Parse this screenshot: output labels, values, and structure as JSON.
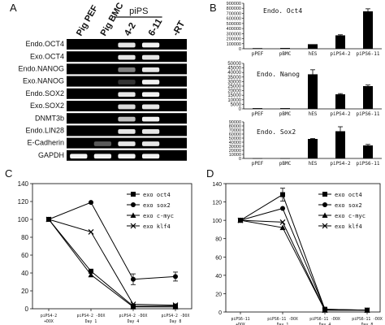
{
  "panels": {
    "a": "A",
    "b": "B",
    "c": "C",
    "d": "D"
  },
  "gel": {
    "lanes": [
      "Pig PEF",
      "Pig BMC",
      "4-2",
      "6-11",
      "-RT"
    ],
    "piPS_label": "piPS",
    "rows": [
      {
        "label": "Endo.OCT4",
        "bands": [
          0,
          0,
          0.9,
          0.95,
          0
        ]
      },
      {
        "label": "Exo.OCT4",
        "bands": [
          0,
          0,
          0.9,
          0.9,
          0
        ]
      },
      {
        "label": "Endo.NANOG",
        "bands": [
          0,
          0,
          0.5,
          0.9,
          0
        ]
      },
      {
        "label": "Exo.NANOG",
        "bands": [
          0,
          0,
          0.2,
          0.95,
          0
        ]
      },
      {
        "label": "Endo.SOX2",
        "bands": [
          0,
          0,
          0.9,
          0.95,
          0
        ]
      },
      {
        "label": "Exo.SOX2",
        "bands": [
          0,
          0,
          0.85,
          0.9,
          0
        ]
      },
      {
        "label": "DNMT3b",
        "bands": [
          0,
          0,
          0.75,
          0.95,
          0
        ]
      },
      {
        "label": "Endo.LIN28",
        "bands": [
          0,
          0,
          0.9,
          0.9,
          0
        ]
      },
      {
        "label": "E-Cadherin",
        "bands": [
          0,
          0.35,
          0.9,
          0.9,
          0
        ]
      },
      {
        "label": "GAPDH",
        "bands": [
          0.95,
          0.95,
          0.95,
          0.95,
          0
        ]
      }
    ]
  },
  "colors": {
    "gel_bg": "#000000",
    "band": "#ffffff",
    "bar": "#000000",
    "line": "#000000"
  },
  "chart_data": [
    {
      "type": "bar",
      "title": "Endo. Oct4",
      "categories": [
        "pPEF",
        "pBMC",
        "hES",
        "piPS4-2",
        "piPS6-11"
      ],
      "values": [
        12000,
        15000,
        90000,
        265000,
        740000
      ],
      "errors": [
        0,
        0,
        0,
        12000,
        50000
      ],
      "ylim": [
        0,
        900000
      ],
      "yticks": [
        "0",
        "100000",
        "200000",
        "300000",
        "400000",
        "500000",
        "600000",
        "700000",
        "800000",
        "900000"
      ]
    },
    {
      "type": "bar",
      "title": "Endo. Nanog",
      "categories": [
        "pPEF",
        "pBMC",
        "hES",
        "piPS4-2",
        "piPS6-11"
      ],
      "values": [
        800,
        800,
        38000,
        16000,
        25000
      ],
      "errors": [
        0,
        0,
        5000,
        800,
        1200
      ],
      "ylim": [
        0,
        50000
      ],
      "yticks": [
        "0",
        "5000",
        "10000",
        "15000",
        "20000",
        "25000",
        "30000",
        "35000",
        "40000",
        "45000",
        "50000"
      ]
    },
    {
      "type": "bar",
      "title": "Endo. Sox2",
      "categories": [
        "pPEF",
        "pBMC",
        "hES",
        "piPS4-2",
        "piPS6-11"
      ],
      "values": [
        400,
        400,
        48000,
        67000,
        32000
      ],
      "errors": [
        0,
        0,
        1000,
        11000,
        2500
      ],
      "ylim": [
        0,
        90000
      ],
      "yticks": [
        "0",
        "10000",
        "20000",
        "30000",
        "40000",
        "50000",
        "60000",
        "70000",
        "80000",
        "90000"
      ]
    },
    {
      "type": "line",
      "categories": [
        "piPS4-2 +DOX",
        "piPS4-2 -DOX Day 1",
        "piPS4-2 -DOX Day 4",
        "piPS4-2 -DOX Day 8"
      ],
      "ylim": [
        0,
        140
      ],
      "yticks": [
        "0",
        "20",
        "40",
        "60",
        "80",
        "100",
        "120",
        "140"
      ],
      "series": [
        {
          "name": "exo oct4",
          "marker": "square",
          "values": [
            100,
            42,
            3,
            3
          ],
          "errors": [
            0,
            0,
            0,
            0
          ]
        },
        {
          "name": "exo sox2",
          "marker": "circle",
          "values": [
            100,
            119,
            33,
            36
          ],
          "errors": [
            0,
            0,
            6,
            5
          ]
        },
        {
          "name": "exo c-myc",
          "marker": "triangle",
          "values": [
            100,
            38,
            2,
            2
          ],
          "errors": [
            0,
            0,
            0,
            0
          ]
        },
        {
          "name": "exo klf4",
          "marker": "cross",
          "values": [
            100,
            86,
            5,
            4
          ],
          "errors": [
            0,
            0,
            0,
            0
          ]
        }
      ]
    },
    {
      "type": "line",
      "categories": [
        "piPS6-11 +DOX",
        "piPS6-11 -DOX Day 1",
        "piPS6-11 -DOX Day 4",
        "piPS6-11 -DOX Day 8"
      ],
      "ylim": [
        0,
        140
      ],
      "yticks": [
        "0",
        "20",
        "40",
        "60",
        "80",
        "100",
        "120",
        "140"
      ],
      "series": [
        {
          "name": "exo oct4",
          "marker": "square",
          "values": [
            100,
            128,
            3,
            2
          ],
          "errors": [
            0,
            7,
            0,
            0
          ]
        },
        {
          "name": "exo sox2",
          "marker": "circle",
          "values": [
            100,
            113,
            3,
            2
          ],
          "errors": [
            0,
            0,
            0,
            0
          ]
        },
        {
          "name": "exo c-myc",
          "marker": "triangle",
          "values": [
            100,
            92,
            2,
            2
          ],
          "errors": [
            0,
            0,
            0,
            0
          ]
        },
        {
          "name": "exo klf4",
          "marker": "cross",
          "values": [
            100,
            98,
            2,
            2
          ],
          "errors": [
            0,
            0,
            0,
            0
          ]
        }
      ]
    }
  ]
}
